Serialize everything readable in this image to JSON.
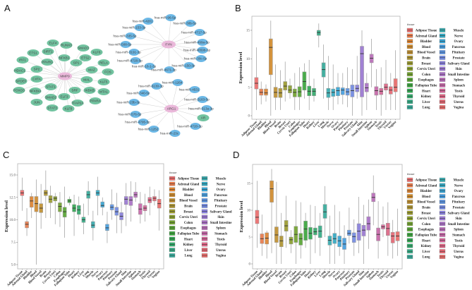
{
  "panels": {
    "a": "A",
    "b": "B",
    "c": "C",
    "d": "D"
  },
  "colors": {
    "gene_node": "#72c3a0",
    "mirna_node": "#6cb8e6",
    "hub_node": "#eab8da",
    "edge": "#cfcfcf"
  },
  "network": {
    "hubs": [
      "MMP9",
      "FYN",
      "ARG1"
    ],
    "mmp9_targets": [
      "ELF4",
      "RUNX3",
      "SMAD3",
      "KLF6",
      "ETS1",
      "SIRT1",
      "NFKB1",
      "ETS2",
      "RELA",
      "IRF1",
      "PPARG",
      "SP1",
      "MAZ",
      "FOS",
      "HDAC1",
      "SP2",
      "CIITA",
      "MAL",
      "KLF5",
      "SPDEF",
      "STAT1",
      "FOXO3",
      "NFKBIA",
      "IKBKB",
      "MTA1",
      "SMAD2",
      "ELF3",
      "SRF",
      "PPARA",
      "JUN",
      "STAT3",
      "KLF8",
      "TFAP2A"
    ],
    "fyn_targets": [
      "hsa-miR-96-5p",
      "hsa-miR-4281",
      "hsa-miR-30b-5p",
      "hsa-miR-153-3p",
      "hsa-miR-4717-5p",
      "hsa-miR-335-5p",
      "hsa-miR-499a-5p",
      "hsa-miR-508-5p",
      "hsa-miR-4659b-5p",
      "hsa-miR-3191-3p",
      "hsa-miR-30c-5p",
      "hsa-miR-4728-5p",
      "hsa-miR-150-3p",
      "hsa-miR-16-1-3p",
      "hsa-miR-4671-3p"
    ],
    "arg1_targets": [
      "hsa-miR-6130-3p",
      "hsa-miR-1264",
      "hsa-miR-4531",
      "hsa-miR-340-5p",
      "hsa-miR-3163-5p",
      "hsa-miR-23b-3p",
      "hsa-miR-513a-3p",
      "AR",
      "hsa-miR-576-5p",
      "hsa-miR-4795-5p",
      "hsa-miR-4720-3p",
      "hsa-miR-1252",
      "hsa-miR-23c"
    ]
  },
  "chart_data": [
    {
      "type": "box",
      "panel": "B",
      "ylabel": "Expression level",
      "legend_title": "tissue",
      "legend_position": "right",
      "ylim": [
        0,
        17.5
      ],
      "yticks": [
        0,
        5,
        10,
        15
      ],
      "ytick_labels": [
        "0",
        "5",
        "10",
        "15"
      ],
      "categories": [
        "Adipose Tissue",
        "Adrenal Gland",
        "Bladder",
        "Blood",
        "Blood Vessel",
        "Brain",
        "Breast",
        "Cervix Uteri",
        "Colon",
        "Esophagus",
        "Fallopian Tube",
        "Heart",
        "Kidney",
        "Liver",
        "Lung",
        "Muscle",
        "Nerve",
        "Ovary",
        "Pancreas",
        "Pituitary",
        "Prostate",
        "Salivary Gland",
        "Skin",
        "Small Intestine",
        "Spleen",
        "Stomach",
        "Testis",
        "Thyroid",
        "Uterus",
        "Vagina"
      ],
      "stats_min_q1_median_q3_max": [
        [
          1,
          4.7,
          5.7,
          6.7,
          12
        ],
        [
          2,
          3.6,
          4.1,
          4.7,
          6
        ],
        [
          2.5,
          3.6,
          4,
          4.7,
          5.5
        ],
        [
          0,
          7.2,
          12,
          13.5,
          16.7
        ],
        [
          1,
          3.2,
          4.1,
          5,
          9
        ],
        [
          1,
          3.2,
          4,
          4.8,
          8
        ],
        [
          2.5,
          4.5,
          5.2,
          6,
          9.5
        ],
        [
          3,
          4,
          4.5,
          5.3,
          6.5
        ],
        [
          1,
          3.3,
          4.1,
          4.7,
          7.5
        ],
        [
          1,
          3.3,
          4.2,
          5.1,
          8.5
        ],
        [
          3,
          4.5,
          6,
          7.7,
          9.2
        ],
        [
          1,
          3.5,
          4.3,
          5.2,
          9.8
        ],
        [
          2.5,
          3.5,
          4.3,
          4.8,
          6.5
        ],
        [
          12,
          14.1,
          14.6,
          15,
          16.2
        ],
        [
          3,
          6.8,
          8.1,
          9.3,
          12.5
        ],
        [
          1,
          3.2,
          4,
          4.8,
          10.5
        ],
        [
          1,
          3.4,
          4.1,
          4.7,
          9
        ],
        [
          2,
          3.5,
          4.4,
          5,
          7.5
        ],
        [
          2,
          3.7,
          4.5,
          4.9,
          7.5
        ],
        [
          1.5,
          3.6,
          4.2,
          4.8,
          8.5
        ],
        [
          0,
          3.3,
          4.4,
          5.4,
          8.2
        ],
        [
          3,
          4.2,
          4.8,
          5.4,
          10.5
        ],
        [
          0,
          3.3,
          10.9,
          12.2,
          15
        ],
        [
          1,
          4.2,
          4.9,
          5.7,
          7.5
        ],
        [
          5,
          9.3,
          10.1,
          10.8,
          13.5
        ],
        [
          1,
          3.6,
          4.4,
          5.1,
          8.2
        ],
        [
          0,
          3.7,
          4.3,
          4.8,
          8.5
        ],
        [
          1,
          4.5,
          5,
          5.6,
          9.8
        ],
        [
          1,
          3.8,
          4.5,
          5.1,
          7.5
        ],
        [
          1,
          4.2,
          5,
          6.5,
          11.5
        ]
      ]
    },
    {
      "type": "box",
      "panel": "C",
      "ylabel": "Expression level",
      "legend_title": "tissue",
      "legend_position": "right",
      "ylim": [
        4.5,
        16.2
      ],
      "yticks": [
        5,
        7.5,
        10,
        12.5,
        15
      ],
      "ytick_labels": [
        "5.0",
        "7.5",
        "10.0",
        "12.5",
        "15.0"
      ],
      "categories": [
        "Adipose Tissue",
        "Adrenal Gland",
        "Bladder",
        "Blood",
        "Blood Vessel",
        "Brain",
        "Breast",
        "Cervix Uteri",
        "Colon",
        "Esophagus",
        "Fallopian Tube",
        "Heart",
        "Kidney",
        "Liver",
        "Lung",
        "Muscle",
        "Nerve",
        "Ovary",
        "Pancreas",
        "Pituitary",
        "Prostate",
        "Salivary Gland",
        "Skin",
        "Small Intestine",
        "Spleen",
        "Stomach",
        "Testis",
        "Thyroid",
        "Uterus",
        "Vagina"
      ],
      "stats_min_q1_median_q3_max": [
        [
          11,
          12.7,
          13,
          13.3,
          14.7
        ],
        [
          8.2,
          9.1,
          9.5,
          9.8,
          11.3
        ],
        [
          10.2,
          11.4,
          12.1,
          12.6,
          13
        ],
        [
          5,
          10.9,
          11.8,
          12.6,
          14.5
        ],
        [
          9,
          10.8,
          11.3,
          11.8,
          14
        ],
        [
          10.2,
          12.7,
          13,
          13.3,
          15.5
        ],
        [
          10.2,
          11.9,
          12.3,
          12.7,
          13.8
        ],
        [
          9.5,
          12.1,
          12.4,
          12.6,
          13
        ],
        [
          9.2,
          10.9,
          11.5,
          11.9,
          13.1
        ],
        [
          8,
          10.3,
          10.9,
          11.4,
          13.7
        ],
        [
          11.6,
          11.9,
          12.1,
          12.3,
          12.6
        ],
        [
          8.2,
          10.9,
          11.3,
          11.7,
          12.8
        ],
        [
          10,
          10.6,
          11.1,
          11.6,
          12.6
        ],
        [
          8.4,
          9.7,
          10,
          10.3,
          11.8
        ],
        [
          10.5,
          12.4,
          12.8,
          13.2,
          14.3
        ],
        [
          7.7,
          9.1,
          9.4,
          9.8,
          11
        ],
        [
          10.5,
          12.7,
          13,
          13.3,
          14.8
        ],
        [
          10.5,
          11.4,
          11.6,
          12,
          12.5
        ],
        [
          7.4,
          8.8,
          9.1,
          9.5,
          10.9
        ],
        [
          10,
          11.1,
          11.4,
          11.7,
          13.4
        ],
        [
          8.5,
          10.5,
          10.9,
          11.4,
          13
        ],
        [
          8.5,
          10,
          10.4,
          10.8,
          12
        ],
        [
          9.3,
          11.7,
          12.3,
          12.6,
          14.1
        ],
        [
          9.8,
          11.6,
          12.2,
          12.6,
          14.3
        ],
        [
          12,
          12.5,
          12.8,
          13.1,
          14.2
        ],
        [
          9.6,
          10.6,
          11.2,
          11.8,
          13.1
        ],
        [
          9.8,
          11,
          11.3,
          11.6,
          12.9
        ],
        [
          10.5,
          11.9,
          12.2,
          12.5,
          13.7
        ],
        [
          11.6,
          12.1,
          12.4,
          12.6,
          13.4
        ],
        [
          8.8,
          11.3,
          11.8,
          12.3,
          13.3
        ]
      ]
    },
    {
      "type": "box",
      "panel": "D",
      "ylabel": "Expression level",
      "legend_title": "tissue",
      "legend_position": "right",
      "ylim": [
        0,
        18.5
      ],
      "yticks": [
        0,
        5,
        10,
        15
      ],
      "ytick_labels": [
        "0",
        "5",
        "10",
        "15"
      ],
      "categories": [
        "Adipose Tissue",
        "Adrenal Gland",
        "Bladder",
        "Blood",
        "Blood Vessel",
        "Brain",
        "Breast",
        "Cervix Uteri",
        "Colon",
        "Esophagus",
        "Fallopian Tube",
        "Heart",
        "Kidney",
        "Liver",
        "Lung",
        "Muscle",
        "Nerve",
        "Ovary",
        "Pancreas",
        "Pituitary",
        "Prostate",
        "Salivary Gland",
        "Skin",
        "Small Intestine",
        "Spleen",
        "Stomach",
        "Testis",
        "Thyroid",
        "Uterus",
        "Vagina"
      ],
      "stats_min_q1_median_q3_max": [
        [
          3,
          7.5,
          8.7,
          10,
          15.5
        ],
        [
          1.5,
          3.8,
          4.7,
          5.6,
          9.2
        ],
        [
          1,
          3.7,
          4.8,
          5.8,
          6.2
        ],
        [
          2,
          11.5,
          14,
          15.5,
          17.7
        ],
        [
          0,
          4,
          5.4,
          6.9,
          15.3
        ],
        [
          0,
          3.2,
          4.3,
          5.2,
          9.5
        ],
        [
          3,
          6.1,
          7.1,
          8.1,
          12.7
        ],
        [
          2,
          3.7,
          4.5,
          5,
          6.3
        ],
        [
          0,
          4,
          5.5,
          7,
          11.8
        ],
        [
          1,
          3.5,
          4.7,
          5.7,
          11.5
        ],
        [
          3,
          4.4,
          6.5,
          8,
          9.5
        ],
        [
          0,
          4.6,
          5.7,
          6.8,
          11
        ],
        [
          2,
          5.4,
          6,
          6.7,
          10.8
        ],
        [
          1.5,
          4.9,
          6.1,
          7.1,
          9.5
        ],
        [
          5,
          8.5,
          9.7,
          11.1,
          14.5
        ],
        [
          0,
          3.5,
          4.4,
          5.2,
          9
        ],
        [
          0,
          3.8,
          4.7,
          5.7,
          11
        ],
        [
          1.5,
          3.2,
          4.3,
          5.2,
          9.8
        ],
        [
          0,
          2.7,
          3.7,
          4.8,
          7.2
        ],
        [
          3.8,
          5.3,
          5.7,
          6.3,
          10.5
        ],
        [
          1.5,
          4,
          5.1,
          5.8,
          8.3
        ],
        [
          2,
          4.4,
          6.1,
          7.5,
          12.5
        ],
        [
          0,
          5.2,
          6.3,
          7.2,
          11
        ],
        [
          2.8,
          6.3,
          7.5,
          8.8,
          12
        ],
        [
          7.2,
          11.6,
          12.4,
          13.2,
          16.5
        ],
        [
          1,
          4.3,
          5.5,
          6.7,
          11.7
        ],
        [
          5,
          6.5,
          6.9,
          7.3,
          10.7
        ],
        [
          1.5,
          5.3,
          6.6,
          7.6,
          11.5
        ],
        [
          1,
          3.9,
          5.2,
          5.9,
          8.2
        ],
        [
          1.5,
          4.3,
          5.2,
          6,
          10.3
        ]
      ]
    }
  ],
  "tissue_colors": [
    "#ec6b6b",
    "#e87a4a",
    "#de8330",
    "#d08a2a",
    "#c08f2e",
    "#ad9430",
    "#9b9a2e",
    "#8a9e2c",
    "#72a22e",
    "#58a533",
    "#3aa63c",
    "#2fa650",
    "#32a86a",
    "#33aa84",
    "#34ab9a",
    "#34aaae",
    "#32a8c2",
    "#36a4d4",
    "#449de0",
    "#5a94e4",
    "#7189e2",
    "#877edc",
    "#9977d2",
    "#aa70c6",
    "#b96bb8",
    "#c766a8",
    "#d36496",
    "#dd6484",
    "#e46672",
    "#ea6a68"
  ]
}
